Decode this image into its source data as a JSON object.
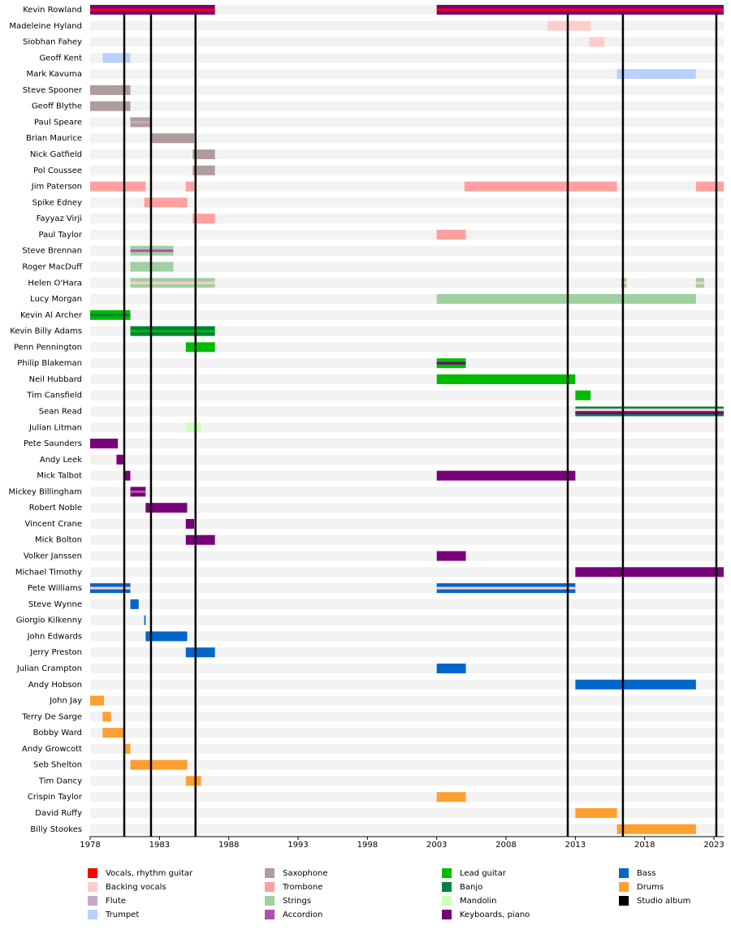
{
  "chart_data": {
    "type": "timeline",
    "xlim": [
      1978,
      2023.7
    ],
    "xticks": [
      1978,
      1983,
      1988,
      1993,
      1998,
      2003,
      2008,
      2013,
      2018,
      2023
    ],
    "roles": [
      {
        "name": "Vocals, rhythm guitar",
        "color": "#ff0000"
      },
      {
        "name": "Backing vocals",
        "color": "#ffcccc"
      },
      {
        "name": "Flute",
        "color": "#c8a8c8"
      },
      {
        "name": "Trumpet",
        "color": "#b8cfff"
      },
      {
        "name": "Saxophone",
        "color": "#b09c9c"
      },
      {
        "name": "Trombone",
        "color": "#ffa0a0"
      },
      {
        "name": "Strings",
        "color": "#a0d0a0"
      },
      {
        "name": "Accordion",
        "color": "#b050b0"
      },
      {
        "name": "Lead guitar",
        "color": "#00bb00"
      },
      {
        "name": "Banjo",
        "color": "#008040"
      },
      {
        "name": "Mandolin",
        "color": "#ccffbb"
      },
      {
        "name": "Keyboards, piano",
        "color": "#780078"
      },
      {
        "name": "Bass",
        "color": "#0066cc"
      },
      {
        "name": "Drums",
        "color": "#ff9f30"
      }
    ],
    "studio_albums": {
      "name": "Studio album",
      "color": "#000000",
      "values": [
        1980.46,
        1982.39,
        1985.6,
        2012.45,
        2016.43,
        2023.17
      ]
    },
    "members": [
      {
        "name": "Kevin Rowland",
        "bars": [
          {
            "start": 1978,
            "end": 1987,
            "roles": [
              "Keyboards, piano",
              "Vocals, rhythm guitar"
            ]
          },
          {
            "start": 2003,
            "end": 2023.7,
            "roles": [
              "Keyboards, piano",
              "Vocals, rhythm guitar"
            ]
          }
        ]
      },
      {
        "name": "Madeleine Hyland",
        "bars": [
          {
            "start": 2011,
            "end": 2014.1,
            "roles": [
              "Backing vocals"
            ]
          }
        ]
      },
      {
        "name": "Siobhan Fahey",
        "bars": [
          {
            "start": 2014,
            "end": 2015.1,
            "roles": [
              "Backing vocals"
            ]
          }
        ]
      },
      {
        "name": "Geoff Kent",
        "bars": [
          {
            "start": 1978.9,
            "end": 1980.9,
            "roles": [
              "Trumpet"
            ]
          }
        ]
      },
      {
        "name": "Mark Kavuma",
        "bars": [
          {
            "start": 2016,
            "end": 2021.7,
            "roles": [
              "Trumpet"
            ]
          }
        ]
      },
      {
        "name": "Steve Spooner",
        "bars": [
          {
            "start": 1978,
            "end": 1980.9,
            "roles": [
              "Saxophone"
            ]
          }
        ]
      },
      {
        "name": "Geoff Blythe",
        "bars": [
          {
            "start": 1978,
            "end": 1980.9,
            "roles": [
              "Saxophone"
            ]
          }
        ]
      },
      {
        "name": "Paul Speare",
        "bars": [
          {
            "start": 1980.9,
            "end": 1982.4,
            "roles": [
              "Saxophone",
              "Flute"
            ]
          }
        ]
      },
      {
        "name": "Brian Maurice",
        "bars": [
          {
            "start": 1982.4,
            "end": 1985.5,
            "roles": [
              "Saxophone"
            ]
          }
        ]
      },
      {
        "name": "Nick Gatfield",
        "bars": [
          {
            "start": 1985.4,
            "end": 1987,
            "roles": [
              "Saxophone"
            ]
          }
        ]
      },
      {
        "name": "Pol Coussee",
        "bars": [
          {
            "start": 1985.4,
            "end": 1987,
            "roles": [
              "Saxophone"
            ]
          }
        ]
      },
      {
        "name": "Jim Paterson",
        "bars": [
          {
            "start": 1978,
            "end": 1982,
            "roles": [
              "Trombone"
            ]
          },
          {
            "start": 1984.9,
            "end": 1985.5,
            "roles": [
              "Trombone"
            ]
          },
          {
            "start": 2005,
            "end": 2016,
            "roles": [
              "Trombone"
            ]
          },
          {
            "start": 2021.7,
            "end": 2023.7,
            "roles": [
              "Trombone"
            ]
          }
        ]
      },
      {
        "name": "Spike Edney",
        "bars": [
          {
            "start": 1981.9,
            "end": 1985,
            "roles": [
              "Trombone"
            ]
          }
        ]
      },
      {
        "name": "Fayyaz Virji",
        "bars": [
          {
            "start": 1985.4,
            "end": 1987,
            "roles": [
              "Trombone"
            ]
          }
        ]
      },
      {
        "name": "Paul Taylor",
        "bars": [
          {
            "start": 2003,
            "end": 2005.1,
            "roles": [
              "Trombone"
            ]
          }
        ]
      },
      {
        "name": "Steve Brennan",
        "bars": [
          {
            "start": 1980.9,
            "end": 1984,
            "roles": [
              "Strings",
              "Accordion"
            ]
          }
        ]
      },
      {
        "name": "Roger MacDuff",
        "bars": [
          {
            "start": 1980.9,
            "end": 1984,
            "roles": [
              "Strings"
            ]
          }
        ]
      },
      {
        "name": "Helen O'Hara",
        "bars": [
          {
            "start": 1980.9,
            "end": 1987,
            "roles": [
              "Strings",
              "Backing vocals"
            ]
          },
          {
            "start": 2016.3,
            "end": 2016.7,
            "roles": [
              "Strings",
              "Backing vocals"
            ]
          },
          {
            "start": 2021.7,
            "end": 2022.3,
            "roles": [
              "Strings",
              "Backing vocals"
            ]
          }
        ]
      },
      {
        "name": "Lucy Morgan",
        "bars": [
          {
            "start": 2003,
            "end": 2021.7,
            "roles": [
              "Strings"
            ]
          }
        ]
      },
      {
        "name": "Kevin Al Archer",
        "bars": [
          {
            "start": 1978,
            "end": 1980.9,
            "roles": [
              "Lead guitar",
              "Banjo"
            ]
          }
        ]
      },
      {
        "name": "Kevin Billy Adams",
        "bars": [
          {
            "start": 1980.9,
            "end": 1987,
            "roles": [
              "Banjo",
              "Lead guitar"
            ]
          }
        ]
      },
      {
        "name": "Penn Pennington",
        "bars": [
          {
            "start": 1984.9,
            "end": 1987,
            "roles": [
              "Lead guitar"
            ]
          }
        ]
      },
      {
        "name": "Philip Blakeman",
        "bars": [
          {
            "start": 2003,
            "end": 2005.1,
            "roles": [
              "Lead guitar",
              "Keyboards, piano"
            ]
          }
        ]
      },
      {
        "name": "Neil Hubbard",
        "bars": [
          {
            "start": 2003,
            "end": 2013,
            "roles": [
              "Lead guitar"
            ]
          }
        ]
      },
      {
        "name": "Tim Cansfield",
        "bars": [
          {
            "start": 2013,
            "end": 2014.1,
            "roles": [
              "Lead guitar"
            ]
          }
        ]
      },
      {
        "name": "Sean Read",
        "bars": [
          {
            "start": 2013,
            "end": 2023.7,
            "roles": [
              "Banjo",
              "Backing vocals",
              "Keyboards, piano"
            ]
          }
        ]
      },
      {
        "name": "Julian Litman",
        "bars": [
          {
            "start": 1984.9,
            "end": 1986,
            "roles": [
              "Mandolin"
            ]
          }
        ]
      },
      {
        "name": "Pete Saunders",
        "bars": [
          {
            "start": 1978,
            "end": 1980,
            "roles": [
              "Keyboards, piano"
            ]
          }
        ]
      },
      {
        "name": "Andy Leek",
        "bars": [
          {
            "start": 1979.9,
            "end": 1980.5,
            "roles": [
              "Keyboards, piano"
            ]
          }
        ]
      },
      {
        "name": "Mick Talbot",
        "bars": [
          {
            "start": 1980.4,
            "end": 1980.9,
            "roles": [
              "Keyboards, piano"
            ]
          },
          {
            "start": 2003,
            "end": 2013,
            "roles": [
              "Keyboards, piano"
            ]
          }
        ]
      },
      {
        "name": "Mickey Billingham",
        "bars": [
          {
            "start": 1980.9,
            "end": 1982,
            "roles": [
              "Keyboards, piano",
              "Accordion"
            ]
          }
        ]
      },
      {
        "name": "Robert Noble",
        "bars": [
          {
            "start": 1982,
            "end": 1985,
            "roles": [
              "Keyboards, piano"
            ]
          }
        ]
      },
      {
        "name": "Vincent Crane",
        "bars": [
          {
            "start": 1984.9,
            "end": 1985.5,
            "roles": [
              "Keyboards, piano"
            ]
          }
        ]
      },
      {
        "name": "Mick Bolton",
        "bars": [
          {
            "start": 1984.9,
            "end": 1987,
            "roles": [
              "Keyboards, piano"
            ]
          }
        ]
      },
      {
        "name": "Volker Janssen",
        "bars": [
          {
            "start": 2003,
            "end": 2005.1,
            "roles": [
              "Keyboards, piano"
            ]
          }
        ]
      },
      {
        "name": "Michael Timothy",
        "bars": [
          {
            "start": 2013,
            "end": 2023.7,
            "roles": [
              "Keyboards, piano"
            ]
          }
        ]
      },
      {
        "name": "Pete Williams",
        "bars": [
          {
            "start": 1978,
            "end": 1980.9,
            "roles": [
              "Bass",
              "Backing vocals"
            ]
          },
          {
            "start": 2003,
            "end": 2013,
            "roles": [
              "Bass",
              "Backing vocals"
            ]
          }
        ]
      },
      {
        "name": "Steve Wynne",
        "bars": [
          {
            "start": 1980.9,
            "end": 1981.5,
            "roles": [
              "Bass"
            ]
          }
        ]
      },
      {
        "name": "Giorgio Kilkenny",
        "bars": [
          {
            "start": 1981.9,
            "end": 1982,
            "roles": [
              "Bass"
            ]
          }
        ]
      },
      {
        "name": "John Edwards",
        "bars": [
          {
            "start": 1982,
            "end": 1985,
            "roles": [
              "Bass"
            ]
          }
        ]
      },
      {
        "name": "Jerry Preston",
        "bars": [
          {
            "start": 1984.9,
            "end": 1987,
            "roles": [
              "Bass"
            ]
          }
        ]
      },
      {
        "name": "Julian Crampton",
        "bars": [
          {
            "start": 2003,
            "end": 2005.1,
            "roles": [
              "Bass"
            ]
          }
        ]
      },
      {
        "name": "Andy Hobson",
        "bars": [
          {
            "start": 2013,
            "end": 2021.7,
            "roles": [
              "Bass"
            ]
          }
        ]
      },
      {
        "name": "John Jay",
        "bars": [
          {
            "start": 1978,
            "end": 1979,
            "roles": [
              "Drums"
            ]
          }
        ]
      },
      {
        "name": "Terry De Sarge",
        "bars": [
          {
            "start": 1978.9,
            "end": 1979.5,
            "roles": [
              "Drums"
            ]
          }
        ]
      },
      {
        "name": "Bobby Ward",
        "bars": [
          {
            "start": 1978.9,
            "end": 1980.4,
            "roles": [
              "Drums"
            ]
          }
        ]
      },
      {
        "name": "Andy Growcott",
        "bars": [
          {
            "start": 1980.4,
            "end": 1980.9,
            "roles": [
              "Drums"
            ]
          }
        ]
      },
      {
        "name": "Seb Shelton",
        "bars": [
          {
            "start": 1980.9,
            "end": 1985,
            "roles": [
              "Drums"
            ]
          }
        ]
      },
      {
        "name": "Tim Dancy",
        "bars": [
          {
            "start": 1984.9,
            "end": 1986,
            "roles": [
              "Drums"
            ]
          }
        ]
      },
      {
        "name": "Crispin Taylor",
        "bars": [
          {
            "start": 2003,
            "end": 2005.1,
            "roles": [
              "Drums"
            ]
          }
        ]
      },
      {
        "name": "David Ruffy",
        "bars": [
          {
            "start": 2013,
            "end": 2016,
            "roles": [
              "Drums"
            ]
          }
        ]
      },
      {
        "name": "Billy Stookes",
        "bars": [
          {
            "start": 2016,
            "end": 2021.7,
            "roles": [
              "Drums"
            ]
          }
        ]
      }
    ]
  }
}
